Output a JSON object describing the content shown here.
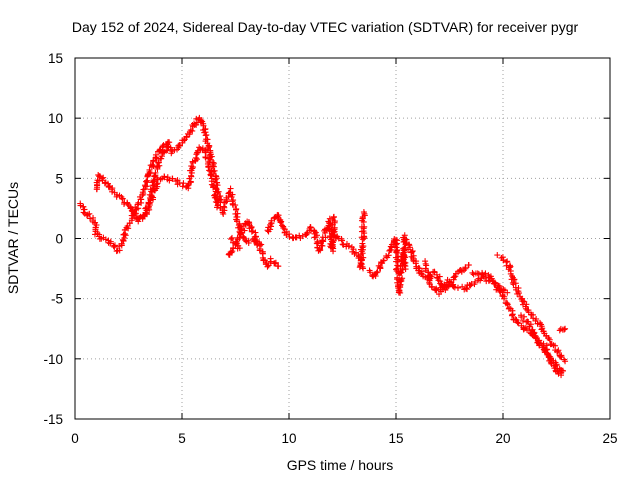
{
  "chart_data": {
    "type": "scatter",
    "title": "Day 152 of 2024, Sidereal Day-to-day VTEC variation (SDTVAR) for receiver pygr",
    "xlabel": "GPS time / hours",
    "ylabel": "SDTVAR / TECUs",
    "xlim": [
      0,
      25
    ],
    "ylim": [
      -15,
      15
    ],
    "xticks": [
      0,
      5,
      10,
      15,
      20,
      25
    ],
    "yticks": [
      -15,
      -10,
      -5,
      0,
      5,
      10,
      15
    ],
    "grid": true,
    "marker": "+",
    "color": "#ff0000",
    "series": [
      {
        "name": "SDTVAR",
        "trace_points": [
          [
            0.3,
            3.0
          ],
          [
            0.4,
            2.5
          ],
          [
            0.5,
            2.2
          ],
          [
            0.9,
            1.5
          ],
          [
            1.0,
            0.5
          ],
          [
            1.2,
            0.1
          ],
          [
            1.5,
            -0.2
          ],
          [
            1.8,
            -0.7
          ],
          [
            2.0,
            -1.0
          ],
          [
            2.2,
            -0.5
          ],
          [
            2.4,
            0.8
          ],
          [
            2.7,
            1.8
          ],
          [
            3.0,
            3.0
          ],
          [
            3.3,
            4.5
          ],
          [
            3.6,
            6.0
          ],
          [
            3.9,
            7.2
          ],
          [
            4.2,
            7.8
          ],
          [
            4.5,
            7.2
          ],
          [
            4.8,
            7.5
          ],
          [
            5.1,
            8.2
          ],
          [
            5.4,
            9.0
          ],
          [
            5.6,
            9.5
          ],
          [
            5.8,
            10.0
          ],
          [
            6.0,
            9.5
          ],
          [
            6.2,
            8.0
          ],
          [
            6.4,
            6.5
          ],
          [
            6.6,
            4.5
          ],
          [
            6.8,
            3.0
          ],
          [
            1.0,
            4.0
          ],
          [
            1.1,
            5.2
          ],
          [
            2.6,
            2.5
          ],
          [
            2.9,
            1.6
          ],
          [
            3.2,
            1.8
          ],
          [
            3.5,
            3.2
          ],
          [
            3.8,
            5.5
          ],
          [
            4.1,
            7.0
          ],
          [
            4.4,
            8.0
          ],
          [
            3.0,
            1.5
          ],
          [
            3.3,
            2.0
          ],
          [
            3.6,
            3.5
          ],
          [
            3.9,
            5.0
          ],
          [
            4.3,
            5.0
          ],
          [
            4.7,
            4.8
          ],
          [
            5.0,
            4.5
          ],
          [
            5.3,
            4.3
          ],
          [
            5.5,
            6.0
          ],
          [
            5.8,
            7.5
          ],
          [
            6.0,
            7.5
          ],
          [
            6.3,
            6.0
          ],
          [
            6.5,
            4.0
          ],
          [
            6.7,
            2.5
          ],
          [
            6.9,
            2.2
          ],
          [
            7.2,
            4.0
          ],
          [
            7.4,
            3.0
          ],
          [
            7.6,
            1.5
          ],
          [
            7.8,
            0.0
          ],
          [
            8.1,
            -0.3
          ],
          [
            8.4,
            0.0
          ],
          [
            8.7,
            -0.5
          ],
          [
            7.3,
            0.0
          ],
          [
            7.5,
            -0.3
          ],
          [
            7.7,
            -0.8
          ],
          [
            7.2,
            -1.5
          ],
          [
            8.1,
            1.5
          ],
          [
            8.8,
            -1.5
          ],
          [
            9.0,
            -2.2
          ],
          [
            9.2,
            -1.8
          ],
          [
            9.5,
            -2.3
          ],
          [
            9.0,
            0.5
          ],
          [
            9.2,
            1.5
          ],
          [
            9.5,
            2.0
          ],
          [
            9.7,
            1.0
          ],
          [
            9.9,
            0.3
          ],
          [
            10.2,
            0.0
          ],
          [
            10.8,
            0.2
          ],
          [
            11.0,
            1.0
          ],
          [
            11.2,
            0.5
          ],
          [
            11.4,
            -1.0
          ],
          [
            11.6,
            0.0
          ],
          [
            11.9,
            1.5
          ],
          [
            12.0,
            -1.0
          ],
          [
            12.1,
            1.8
          ],
          [
            12.0,
            0.5
          ],
          [
            13.3,
            -1.5
          ],
          [
            13.4,
            -2.5
          ],
          [
            13.5,
            2.2
          ],
          [
            13.8,
            -2.8
          ],
          [
            14.0,
            -3.2
          ],
          [
            15.0,
            0.0
          ],
          [
            15.1,
            -3.5
          ],
          [
            15.2,
            -4.5
          ],
          [
            15.3,
            -1.0
          ],
          [
            15.4,
            -2.5
          ],
          [
            15.4,
            0.2
          ],
          [
            15.8,
            -1.5
          ],
          [
            16.0,
            -2.5
          ],
          [
            16.2,
            -3.0
          ],
          [
            16.5,
            -3.5
          ],
          [
            16.8,
            -2.8
          ],
          [
            17.0,
            -3.3
          ],
          [
            17.2,
            -4.2
          ],
          [
            17.5,
            -3.8
          ],
          [
            17.8,
            -3.0
          ],
          [
            18.1,
            -2.6
          ],
          [
            18.4,
            -2.2
          ],
          [
            16.4,
            -2.0
          ],
          [
            16.6,
            -3.8
          ],
          [
            17.0,
            -4.5
          ],
          [
            17.4,
            -3.5
          ],
          [
            17.8,
            -4.0
          ],
          [
            18.2,
            -4.2
          ],
          [
            18.6,
            -3.8
          ],
          [
            19.0,
            -3.2
          ],
          [
            19.4,
            -3.5
          ],
          [
            19.8,
            -4.2
          ],
          [
            20.2,
            -4.5
          ],
          [
            18.6,
            -3.0
          ],
          [
            19.0,
            -2.8
          ],
          [
            19.4,
            -3.2
          ],
          [
            19.8,
            -4.0
          ],
          [
            20.2,
            -5.5
          ],
          [
            20.6,
            -6.8
          ],
          [
            21.0,
            -7.5
          ],
          [
            21.4,
            -8.0
          ],
          [
            21.8,
            -9.0
          ],
          [
            22.2,
            -10.0
          ],
          [
            22.6,
            -10.8
          ],
          [
            22.8,
            -11.0
          ],
          [
            19.8,
            -1.5
          ],
          [
            20.2,
            -2.0
          ],
          [
            20.6,
            -4.0
          ],
          [
            21.0,
            -5.5
          ],
          [
            21.4,
            -6.5
          ],
          [
            21.8,
            -7.5
          ],
          [
            22.2,
            -8.5
          ],
          [
            22.6,
            -9.5
          ],
          [
            22.9,
            -10.2
          ],
          [
            20.8,
            -6.5
          ],
          [
            21.2,
            -7.0
          ],
          [
            21.6,
            -8.5
          ],
          [
            22.0,
            -9.0
          ],
          [
            22.3,
            -10.5
          ],
          [
            22.6,
            -11.3
          ],
          [
            22.8,
            -11.0
          ],
          [
            22.6,
            -7.6
          ],
          [
            22.9,
            -7.5
          ]
        ]
      }
    ]
  }
}
